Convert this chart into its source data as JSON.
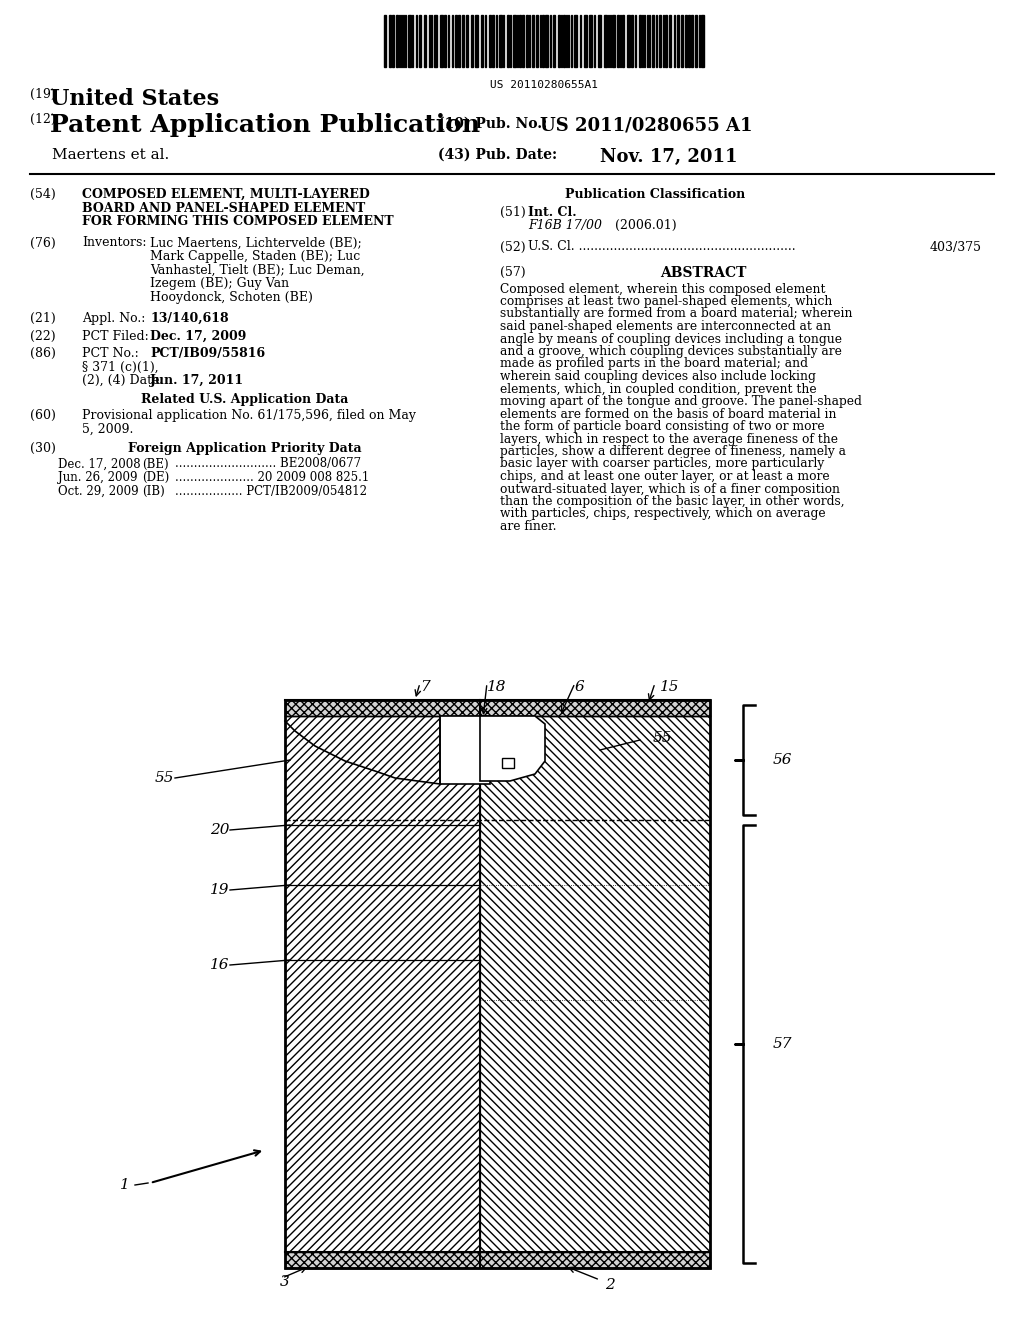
{
  "bg_color": "#ffffff",
  "barcode_text": "US 20110280655A1",
  "header_19_small": "(19)",
  "header_19_large": "United States",
  "header_12_small": "(12)",
  "header_12_large": "Patent Application Publication",
  "header_10_label": "(10) Pub. No.:",
  "header_10_value": "US 2011/0280655 A1",
  "header_43_label": "(43) Pub. Date:",
  "header_43_value": "Nov. 17, 2011",
  "applicant": "Maertens et al.",
  "field_54_label": "(54)",
  "field_54_lines": [
    "COMPOSED ELEMENT, MULTI-LAYERED",
    "BOARD AND PANEL-SHAPED ELEMENT",
    "FOR FORMING THIS COMPOSED ELEMENT"
  ],
  "pub_class_header": "Publication Classification",
  "field_51_label": "(51)",
  "field_51_text": "Int. Cl.",
  "field_51_class": "F16B 17/00",
  "field_51_year": "(2006.01)",
  "field_52_label": "(52)",
  "field_52_dots": "U.S. Cl. ........................................................",
  "field_52_value": "403/375",
  "field_57_label": "(57)",
  "field_57_title": "ABSTRACT",
  "abstract_text": "Composed element, wherein this composed element comprises at least two panel-shaped elements, which substantially are formed from a board material; wherein said panel-shaped elements are interconnected at an angle by means of coupling devices including a tongue and a groove, which coupling devices substantially are made as profiled parts in the board material; and wherein said coupling devices also include locking elements, which, in coupled condition, prevent the moving apart of the tongue and groove. The panel-shaped elements are formed on the basis of board material in the form of particle board consisting of two or more layers, which in respect to the average fineness of the particles, show a different degree of fineness, namely a basic layer with coarser particles, more particularly chips, and at least one outer layer, or at least a more outward-situated layer, which is of a finer composition than the composition of the basic layer, in other words, with particles, chips, respectively, which on average are finer.",
  "field_76_label": "(76)",
  "field_76_title": "Inventors:",
  "field_76_lines": [
    "Luc Maertens, Lichtervelde (BE);",
    "Mark Cappelle, Staden (BE); Luc",
    "Vanhastel, Tielt (BE); Luc Deman,",
    "Izegem (BE); Guy Van",
    "Hooydonck, Schoten (BE)"
  ],
  "field_21_label": "(21)",
  "field_21_title": "Appl. No.:",
  "field_21_value": "13/140,618",
  "field_22_label": "(22)",
  "field_22_title": "PCT Filed:",
  "field_22_value": "Dec. 17, 2009",
  "field_86_label": "(86)",
  "field_86_title": "PCT No.:",
  "field_86_value": "PCT/IB09/55816",
  "field_86b_line1": "§ 371 (c)(1),",
  "field_86b_line2": "(2), (4) Date:",
  "field_86b_value": "Jun. 17, 2011",
  "related_header": "Related U.S. Application Data",
  "field_60_label": "(60)",
  "field_60_lines": [
    "Provisional application No. 61/175,596, filed on May",
    "5, 2009."
  ],
  "foreign_header": "Foreign Application Priority Data",
  "field_30_label": "(30)",
  "foreign_entries": [
    [
      "Dec. 17, 2008",
      "(BE)",
      "........................... BE2008/0677"
    ],
    [
      "Jun. 26, 2009",
      "(DE)",
      "..................... 20 2009 008 825.1"
    ],
    [
      "Oct. 29, 2009",
      "(IB)",
      ".................. PCT/IB2009/054812"
    ]
  ]
}
